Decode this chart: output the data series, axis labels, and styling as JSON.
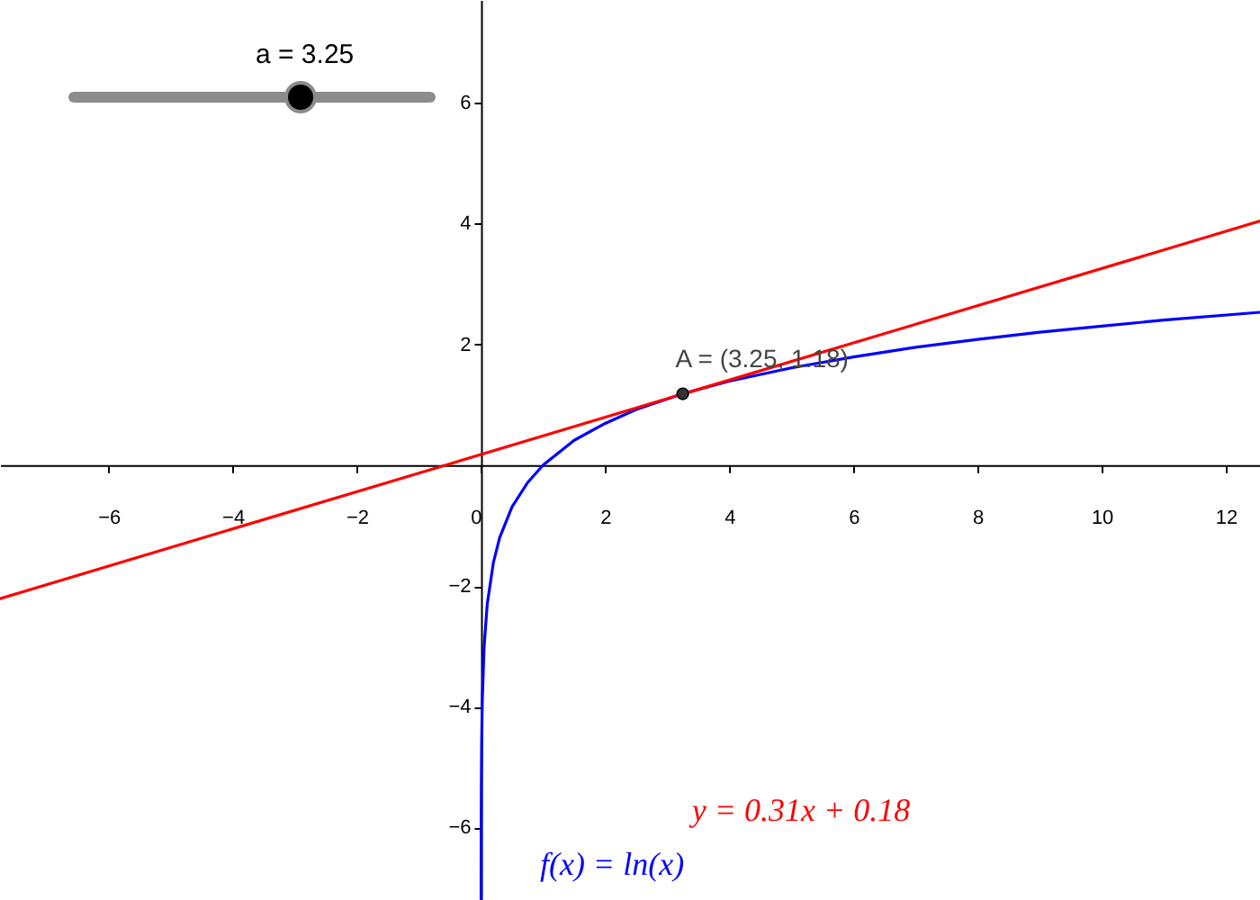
{
  "chart_data": {
    "type": "line",
    "xlim": [
      -7.75,
      12.55
    ],
    "ylim": [
      -7.2,
      7.7
    ],
    "xticks": [
      -6,
      -4,
      -2,
      0,
      2,
      4,
      6,
      8,
      10,
      12
    ],
    "yticks": [
      -6,
      -4,
      -2,
      2,
      4,
      6
    ],
    "grid": false,
    "series": [
      {
        "name": "f(x) = ln(x)",
        "color": "#0000ff",
        "x": [
          0.00076,
          0.001,
          0.002,
          0.005,
          0.01,
          0.02,
          0.05,
          0.1,
          0.2,
          0.3,
          0.5,
          0.75,
          1,
          1.5,
          2,
          2.5,
          3.25,
          4,
          5,
          6,
          7,
          8,
          9,
          10,
          11,
          12.55
        ],
        "values": [
          -7.18,
          -6.91,
          -6.21,
          -5.3,
          -4.61,
          -3.91,
          -3.0,
          -2.3,
          -1.61,
          -1.2,
          -0.69,
          -0.29,
          0,
          0.41,
          0.69,
          0.92,
          1.18,
          1.39,
          1.61,
          1.79,
          1.95,
          2.08,
          2.2,
          2.3,
          2.4,
          2.53
        ]
      },
      {
        "name": "y = 0.31x + 0.18",
        "color": "#ff0000",
        "x": [
          -7.75,
          12.55
        ],
        "values": [
          -2.21,
          4.04
        ]
      },
      {
        "color": "#333333",
        "type": "scatter",
        "marker": "circle",
        "x": [
          3.25
        ],
        "values": [
          1.18
        ]
      }
    ],
    "annotations": [
      {
        "text": "A = (3.25, 1.18)",
        "x": 3.25,
        "y": 1.18
      },
      "a = 3.25"
    ]
  }
}
